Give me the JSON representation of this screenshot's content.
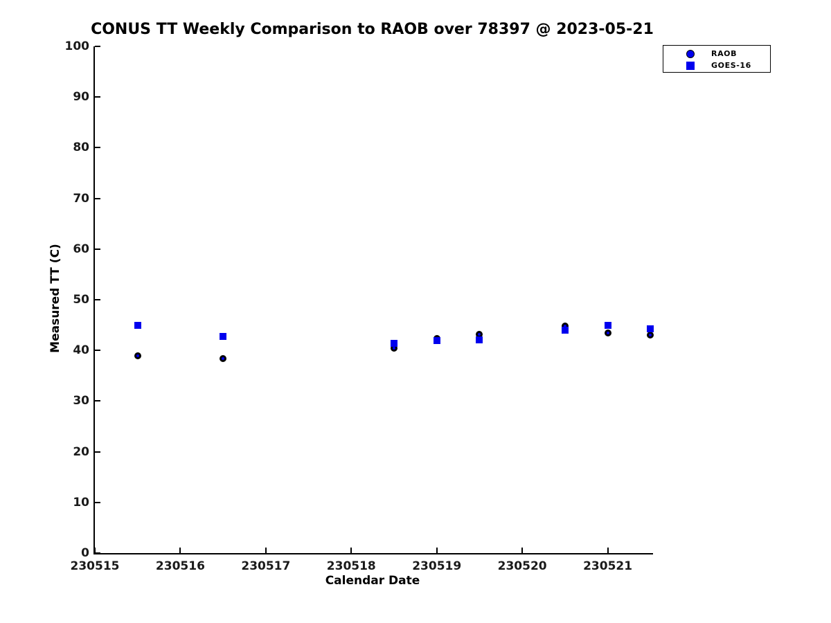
{
  "chart_data": {
    "type": "scatter",
    "title": "CONUS TT Weekly Comparison to RAOB over 78397 @ 2023-05-21",
    "xlabel": "Calendar Date",
    "ylabel": "Measured TT (C)",
    "xlim": [
      230515,
      230521.53
    ],
    "ylim": [
      0,
      100
    ],
    "xticks": [
      230515,
      230516,
      230517,
      230518,
      230519,
      230520,
      230521
    ],
    "yticks": [
      0,
      10,
      20,
      30,
      40,
      50,
      60,
      70,
      80,
      90,
      100
    ],
    "grid": false,
    "legend_position": "top-right",
    "series": [
      {
        "name": "RAOB",
        "marker": "circle",
        "fill_color": "#0000EE",
        "edge_color": "#000000",
        "points": [
          [
            230515.5,
            39.0
          ],
          [
            230516.5,
            38.4
          ],
          [
            230518.5,
            40.5
          ],
          [
            230519.0,
            42.3
          ],
          [
            230519.5,
            43.2
          ],
          [
            230520.5,
            44.8
          ],
          [
            230521.0,
            43.5
          ],
          [
            230521.5,
            43.1
          ]
        ]
      },
      {
        "name": "GOES-16",
        "marker": "square",
        "fill_color": "#0000EE",
        "edge_color": "#0000EE",
        "points": [
          [
            230515.5,
            45.0
          ],
          [
            230516.5,
            42.7
          ],
          [
            230518.5,
            41.4
          ],
          [
            230519.0,
            42.0
          ],
          [
            230519.5,
            42.1
          ],
          [
            230520.5,
            44.0
          ],
          [
            230521.0,
            44.9
          ],
          [
            230521.5,
            44.3
          ]
        ]
      }
    ]
  },
  "colors": {
    "marker_blue": "#0000EE",
    "marker_edge_black": "#000000",
    "axis_black": "#000000",
    "background": "#FFFFFF"
  }
}
